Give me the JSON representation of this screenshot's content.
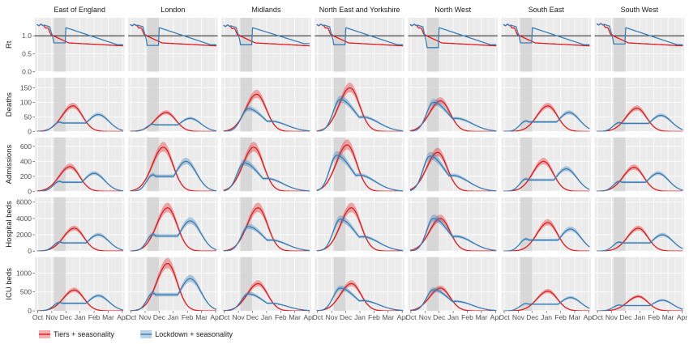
{
  "chart_data": {
    "type": "line",
    "regions": [
      "East of England",
      "London",
      "Midlands",
      "North East and Yorkshire",
      "North West",
      "South East",
      "South West"
    ],
    "metrics": [
      {
        "label": "Rt",
        "ticks": [
          0.0,
          0.5,
          1.0
        ],
        "tick_labels": [
          "0.0",
          "0.5",
          "1.0"
        ],
        "ylim": [
          0,
          1.5
        ]
      },
      {
        "label": "Deaths",
        "ticks": [
          0,
          50,
          100,
          150
        ],
        "tick_labels": [
          "0",
          "50",
          "100",
          "150"
        ],
        "ylim": [
          0,
          185
        ]
      },
      {
        "label": "Admissions",
        "ticks": [
          0,
          200,
          400,
          600
        ],
        "tick_labels": [
          "0",
          "200",
          "400",
          "600"
        ],
        "ylim": [
          0,
          720
        ]
      },
      {
        "label": "Hospital beds",
        "ticks": [
          0,
          2000,
          4000,
          6000
        ],
        "tick_labels": [
          "0",
          "2000",
          "4000",
          "6000"
        ],
        "ylim": [
          0,
          6600
        ]
      },
      {
        "label": "ICU beds",
        "ticks": [
          0,
          500,
          1000
        ],
        "tick_labels": [
          "0",
          "500",
          "1000"
        ],
        "ylim": [
          0,
          1420
        ]
      }
    ],
    "x_ticks": [
      "Oct",
      "Nov",
      "Dec",
      "Jan",
      "Feb",
      "Mar",
      "Apr"
    ],
    "xlim_months": [
      -0.2,
      6.15
    ],
    "lockdown_window_months": [
      1.15,
      2.0
    ],
    "rt_reference_line": 1.0,
    "series": [
      {
        "name": "Tiers + seasonality",
        "color": "#e41a1c"
      },
      {
        "name": "Lockdown + seasonality",
        "color": "#377eb8"
      }
    ],
    "peaks": {
      "tiers": {
        "Deaths": {
          "values": [
            88,
            65,
            128,
            150,
            105,
            88,
            80
          ],
          "months": [
            2.5,
            2.5,
            2.3,
            2.3,
            2.1,
            3.1,
            2.8
          ]
        },
        "Admissions": {
          "values": [
            330,
            590,
            590,
            620,
            520,
            400,
            320
          ],
          "months": [
            2.3,
            2.3,
            2.1,
            2.1,
            1.9,
            2.8,
            2.6
          ]
        },
        "Hospital beds": {
          "values": [
            2800,
            5300,
            5300,
            5300,
            4000,
            3500,
            2800
          ],
          "months": [
            2.6,
            2.6,
            2.4,
            2.4,
            2.1,
            3.1,
            2.9
          ]
        },
        "ICU beds": {
          "values": [
            550,
            1250,
            720,
            720,
            600,
            520,
            380
          ],
          "months": [
            2.6,
            2.6,
            2.4,
            2.4,
            2.1,
            3.1,
            2.9
          ]
        }
      },
      "lockdown": {
        "Deaths": {
          "values": [
            58,
            45,
            78,
            110,
            100,
            65,
            55
          ],
          "months": [
            4.3,
            4.2,
            1.7,
            1.6,
            1.6,
            4.6,
            4.5
          ]
        },
        "Admissions": {
          "values": [
            240,
            400,
            380,
            480,
            470,
            300,
            240
          ],
          "months": [
            4.0,
            3.9,
            1.4,
            1.35,
            1.35,
            4.4,
            4.3
          ]
        },
        "Hospital beds": {
          "values": [
            2000,
            3700,
            3000,
            3900,
            4000,
            2700,
            2000
          ],
          "months": [
            4.3,
            4.2,
            1.7,
            1.6,
            1.6,
            4.7,
            4.6
          ]
        },
        "ICU beds": {
          "values": [
            400,
            850,
            450,
            600,
            560,
            350,
            280
          ],
          "months": [
            4.3,
            4.2,
            1.7,
            1.6,
            1.6,
            4.7,
            4.6
          ]
        }
      }
    },
    "rt": {
      "start": [
        1.3,
        1.3,
        1.28,
        1.3,
        1.3,
        1.3,
        1.32
      ],
      "tiers_end": [
        0.72,
        0.72,
        0.72,
        0.72,
        0.72,
        0.72,
        0.72
      ],
      "lockdown_level": [
        0.85,
        0.78,
        0.8,
        0.8,
        0.72,
        0.85,
        0.82
      ],
      "lockdown_end": [
        0.75,
        0.75,
        0.78,
        0.75,
        0.75,
        0.75,
        0.75
      ]
    },
    "legend_position": "bottom-left",
    "grid": true
  }
}
